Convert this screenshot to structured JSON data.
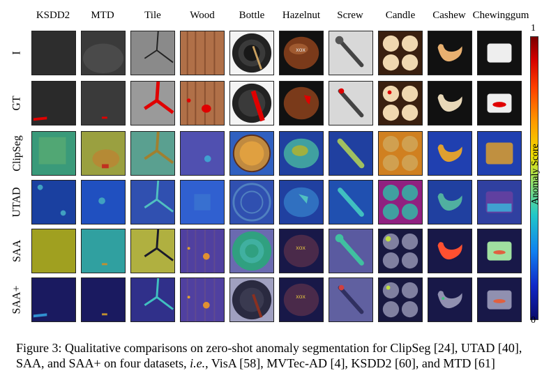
{
  "figure": {
    "columns": [
      "KSDD2",
      "MTD",
      "Tile",
      "Wood",
      "Bottle",
      "Hazelnut",
      "Screw",
      "Candle",
      "Cashew",
      "Chewinggum"
    ],
    "rows": [
      "I",
      "GT",
      "ClipSeg",
      "UTAD",
      "SAA",
      "SAA+"
    ],
    "colorbar": {
      "top": "1",
      "bottom": "0",
      "label": "Anomaly Score"
    }
  },
  "caption": {
    "line1": "Figure 3: Qualitative comparisons on zero-shot anomaly segmentation for ClipSeg [24], UTAD [40],",
    "line2_pre": "SAA, and SAA+ on four datasets, ",
    "line2_ie": "i.e.",
    "line2_post": ", VisA [58], MVTec-AD [4], KSDD2 [60], and MTD [61]"
  }
}
